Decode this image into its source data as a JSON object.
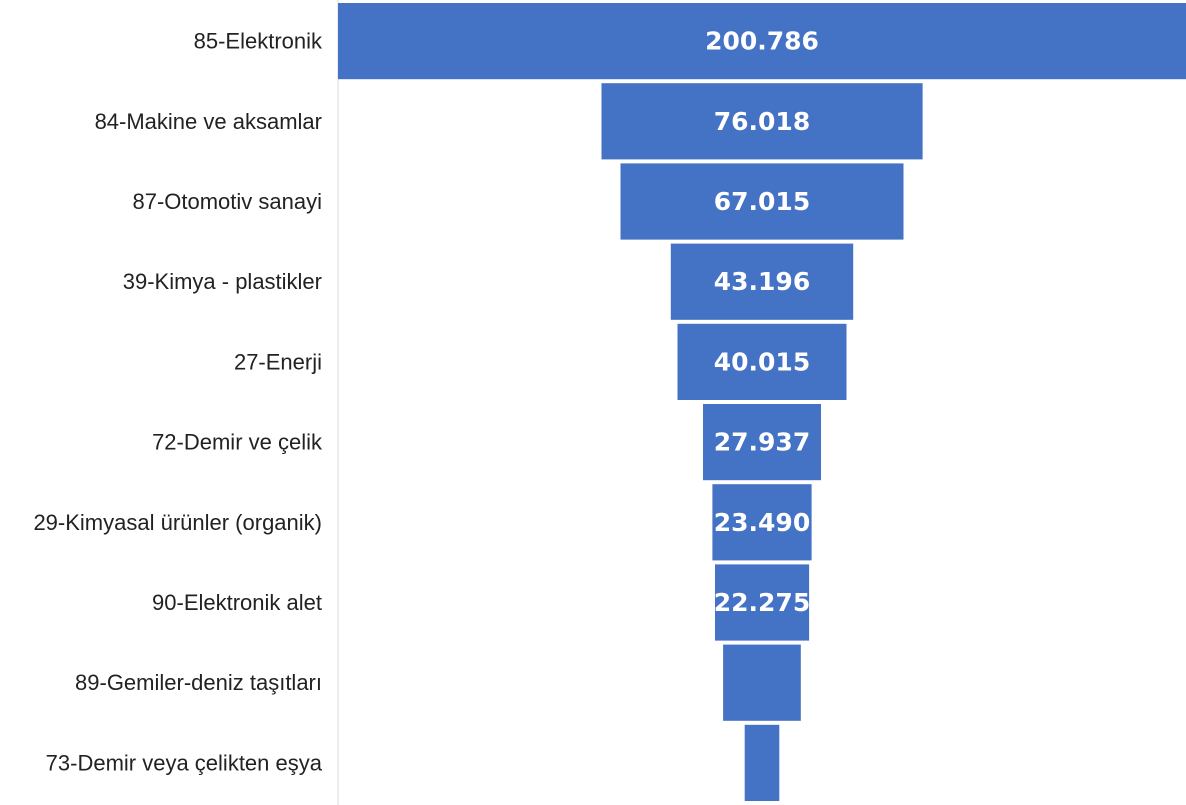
{
  "chart_data": {
    "type": "bar",
    "variant": "funnel",
    "categories": [
      "85-Elektronik",
      "84-Makine ve aksamlar",
      "87-Otomotiv sanayi",
      "39-Kimya - plastikler",
      "27-Enerji",
      "72-Demir ve çelik",
      "29-Kimyasal ürünler (organik)",
      "90-Elektronik alet",
      "89-Gemiler-deniz taşıtları",
      "73-Demir veya çelikten eşya"
    ],
    "values": [
      200786,
      76018,
      67015,
      43196,
      40015,
      27937,
      23490,
      22275,
      18400,
      8200
    ],
    "data_labels": [
      "200.786",
      "76.018",
      "67.015",
      "43.196",
      "40.015",
      "27.937",
      "23.490",
      "22.275",
      "",
      ""
    ],
    "title": "",
    "xlabel": "",
    "ylabel": "",
    "bar_color": "#4472C4",
    "axis_line_color": "#D9D9D9",
    "grid": false
  }
}
